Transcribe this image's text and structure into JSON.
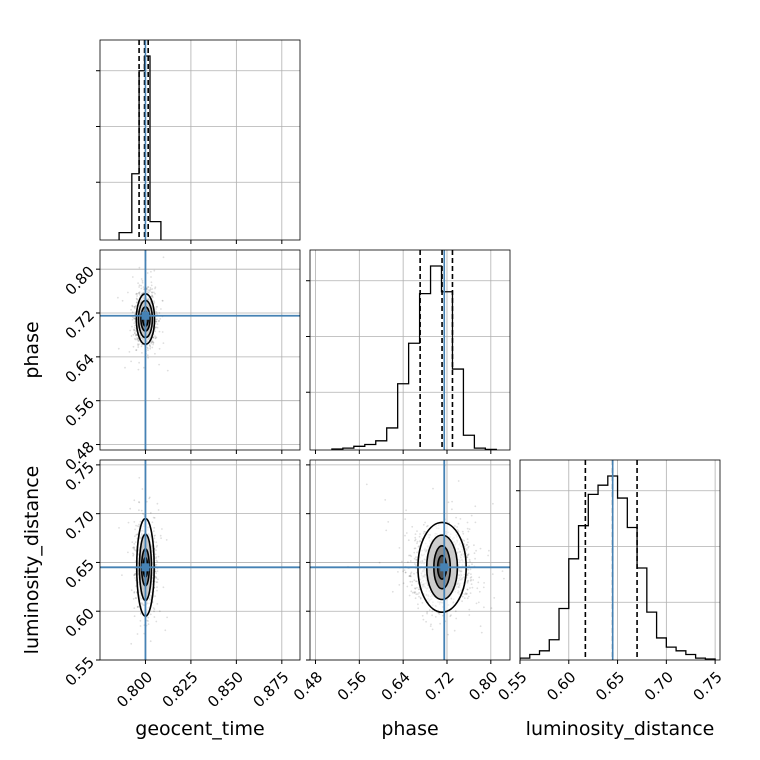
{
  "chart_data": {
    "type": "corner",
    "parameters": [
      {
        "name": "geocent_time",
        "range": [
          0.775,
          0.885
        ],
        "ticks": [
          0.8,
          0.825,
          0.85,
          0.875
        ],
        "tick_labels": [
          "0.800",
          "0.825",
          "0.850",
          "0.875"
        ],
        "truth": 0.8,
        "quantiles": [
          0.7965,
          0.7995,
          0.8015
        ],
        "histogram": {
          "edges": [
            0.7855,
            0.7925,
            0.7965,
            0.7995,
            0.8025,
            0.8085
          ],
          "counts": [
            0.04,
            0.36,
            0.92,
            1.0,
            0.1
          ]
        }
      },
      {
        "name": "phase",
        "range": [
          0.47,
          0.835
        ],
        "ticks": [
          0.48,
          0.56,
          0.64,
          0.72,
          0.8
        ],
        "tick_labels": [
          "0.48",
          "0.56",
          "0.64",
          "0.72",
          "0.80"
        ],
        "truth": 0.715,
        "quantiles": [
          0.671,
          0.711,
          0.73
        ],
        "histogram": {
          "edges": [
            0.51,
            0.53,
            0.55,
            0.57,
            0.59,
            0.61,
            0.63,
            0.65,
            0.67,
            0.69,
            0.71,
            0.73,
            0.75,
            0.77,
            0.79,
            0.81
          ],
          "counts": [
            0.005,
            0.01,
            0.02,
            0.03,
            0.05,
            0.12,
            0.36,
            0.58,
            0.85,
            1.0,
            0.86,
            0.44,
            0.08,
            0.01,
            0.003
          ]
        }
      },
      {
        "name": "luminosity_distance",
        "range": [
          0.55,
          0.755
        ],
        "ticks": [
          0.55,
          0.6,
          0.65,
          0.7,
          0.75
        ],
        "tick_labels": [
          "0.55",
          "0.60",
          "0.65",
          "0.70",
          "0.75"
        ],
        "truth": 0.645,
        "quantiles": [
          0.617,
          0.645,
          0.67
        ],
        "histogram": {
          "edges": [
            0.55,
            0.56,
            0.57,
            0.58,
            0.59,
            0.6,
            0.61,
            0.62,
            0.63,
            0.64,
            0.65,
            0.66,
            0.67,
            0.68,
            0.69,
            0.7,
            0.71,
            0.72,
            0.73,
            0.74,
            0.75
          ],
          "counts": [
            0.01,
            0.03,
            0.05,
            0.11,
            0.28,
            0.55,
            0.73,
            0.9,
            0.95,
            1.0,
            0.88,
            0.72,
            0.5,
            0.26,
            0.12,
            0.07,
            0.05,
            0.03,
            0.01,
            0.005
          ]
        }
      }
    ],
    "pairs": [
      {
        "x": "geocent_time",
        "y": "phase",
        "center": [
          0.8,
          0.709
        ],
        "sigma": [
          0.0025,
          0.022
        ],
        "contours": [
          [
            0.0015,
            0.013
          ],
          [
            0.0025,
            0.022
          ],
          [
            0.0038,
            0.034
          ],
          [
            0.005,
            0.046
          ]
        ],
        "truth": [
          0.8,
          0.715
        ]
      },
      {
        "x": "geocent_time",
        "y": "luminosity_distance",
        "center": [
          0.8,
          0.645
        ],
        "sigma": [
          0.0025,
          0.018
        ],
        "contours": [
          [
            0.0012,
            0.01
          ],
          [
            0.0021,
            0.019
          ],
          [
            0.0033,
            0.034
          ],
          [
            0.0048,
            0.05
          ]
        ],
        "truth": [
          0.8,
          0.645
        ]
      },
      {
        "x": "phase",
        "y": "luminosity_distance",
        "center": [
          0.711,
          0.645
        ],
        "sigma": [
          0.025,
          0.018
        ],
        "contours": [
          [
            0.008,
            0.012
          ],
          [
            0.015,
            0.022
          ],
          [
            0.028,
            0.033
          ],
          [
            0.044,
            0.046
          ]
        ],
        "truth": [
          0.715,
          0.645
        ]
      }
    ],
    "truth_color": "#4682b4",
    "contour_color": "#000000",
    "grid": true
  }
}
